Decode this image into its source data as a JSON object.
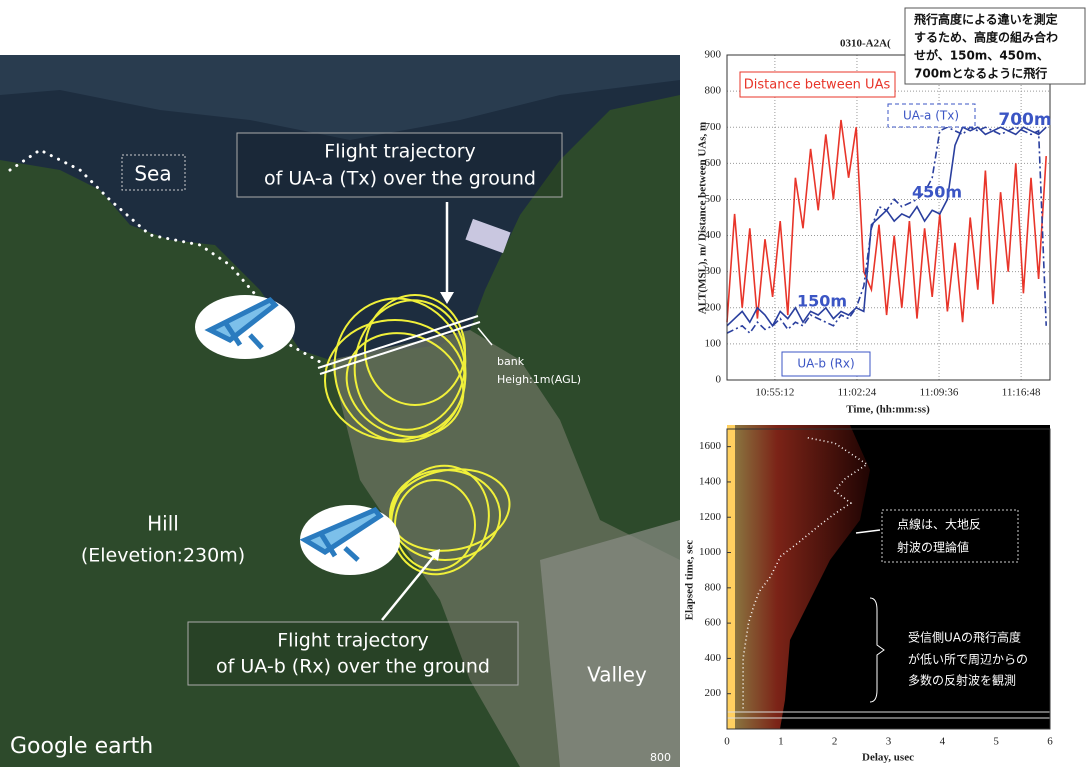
{
  "map": {
    "sea": "Sea",
    "ua_a_label": [
      "Flight trajectory",
      "of UA-a (Tx) over the ground"
    ],
    "bank": "bank",
    "bank_height": "Heigh:1m(AGL)",
    "hill": "Hill",
    "hill_elevation": "(Elevetion:230m)",
    "ua_b_label": [
      "Flight trajectory",
      "of UA-b (Rx) over the ground"
    ],
    "valley": "Valley",
    "logo": "Google earth",
    "scale": "800"
  },
  "callout": {
    "lines": [
      "飛行高度による違いを測定",
      "するため、高度の組み合わ",
      "せが、150m、450m、",
      "700mとなるように飛行"
    ]
  },
  "chart_data": [
    {
      "type": "line",
      "title": "0310-A2A(",
      "x_label": "Time, (hh:mm:ss)",
      "y_label": "ALT(MSL), m/ Distance between UAs, m",
      "x": [
        "10:51:00",
        "10:51:40",
        "10:52:20",
        "10:53:00",
        "10:53:40",
        "10:54:20",
        "10:55:00",
        "10:55:40",
        "10:56:20",
        "10:57:00",
        "10:57:40",
        "10:58:20",
        "10:59:00",
        "10:59:40",
        "11:00:20",
        "11:01:00",
        "11:01:40",
        "11:02:20",
        "11:03:00",
        "11:03:40",
        "11:04:20",
        "11:05:00",
        "11:05:40",
        "11:06:20",
        "11:07:00",
        "11:07:40",
        "11:08:20",
        "11:09:00",
        "11:09:40",
        "11:10:20",
        "11:11:00",
        "11:11:40",
        "11:12:20",
        "11:13:00",
        "11:13:40",
        "11:14:20",
        "11:15:00",
        "11:15:40",
        "11:16:20",
        "11:17:00",
        "11:17:40",
        "11:18:20",
        "11:19:00"
      ],
      "series": [
        {
          "color": "#e8352a",
          "dash": "solid",
          "values": [
            160,
            460,
            200,
            420,
            170,
            390,
            230,
            440,
            180,
            560,
            420,
            640,
            470,
            680,
            500,
            720,
            560,
            700,
            300,
            250,
            430,
            180,
            400,
            200,
            440,
            170,
            420,
            230,
            460,
            190,
            380,
            160,
            450,
            250,
            580,
            210,
            520,
            300,
            600,
            240,
            560,
            280,
            620
          ]
        },
        {
          "color": "#2a3f9e",
          "dash": "dashdot",
          "values": [
            130,
            140,
            150,
            130,
            160,
            140,
            150,
            170,
            140,
            160,
            150,
            180,
            170,
            160,
            150,
            180,
            170,
            200,
            260,
            420,
            480,
            470,
            500,
            480,
            490,
            500,
            520,
            560,
            690,
            700,
            690,
            680,
            700,
            690,
            700,
            690,
            680,
            690,
            700,
            690,
            680,
            690,
            150
          ]
        },
        {
          "color": "#2a3f9e",
          "dash": "solid",
          "values": [
            150,
            170,
            190,
            160,
            200,
            180,
            150,
            190,
            170,
            200,
            160,
            190,
            180,
            200,
            170,
            190,
            180,
            200,
            190,
            430,
            450,
            470,
            440,
            460,
            450,
            480,
            440,
            470,
            460,
            500,
            650,
            700,
            690,
            700,
            680,
            690,
            700,
            690,
            680,
            700,
            690,
            680,
            700
          ]
        }
      ],
      "xlim": [
        "10:51:00",
        "11:19:20"
      ],
      "xticks": [
        "10:55:12",
        "11:02:24",
        "11:09:36",
        "11:16:48"
      ],
      "ylim": [
        0,
        900
      ],
      "yticks": [
        0,
        100,
        200,
        300,
        400,
        500,
        600,
        700,
        800,
        900
      ],
      "grid": true,
      "annotations": [
        {
          "text": "Distance between UAs",
          "color": "#e8352a"
        },
        {
          "text": "UA-a (Tx)",
          "color": "#3b55c4"
        },
        {
          "text": "700m",
          "color": "#3b55c4"
        },
        {
          "text": "450m",
          "color": "#3b55c4"
        },
        {
          "text": "150m",
          "color": "#3b55c4"
        },
        {
          "text": "UA-b (Rx)",
          "color": "#3b55c4"
        }
      ]
    },
    {
      "type": "line",
      "x_label": "Delay, usec",
      "y_label": "Elapsed time, sec",
      "series": [
        {
          "color": "#ffffff",
          "dash": "dotted",
          "x": [
            1.5,
            2.0,
            2.3,
            2.6,
            2.2,
            2.0,
            2.3,
            2.0,
            1.7,
            1.5,
            1.3,
            1.0,
            0.9,
            0.8,
            0.6,
            0.5,
            0.4,
            0.35,
            0.3,
            0.3,
            0.3,
            0.3
          ],
          "values": [
            1650,
            1620,
            1560,
            1500,
            1420,
            1350,
            1280,
            1220,
            1150,
            1100,
            1050,
            980,
            920,
            860,
            780,
            700,
            600,
            500,
            400,
            300,
            200,
            100
          ]
        }
      ],
      "xlim": [
        0,
        6
      ],
      "xticks": [
        0,
        1,
        2,
        3,
        4,
        5,
        6
      ],
      "ylim": [
        0,
        1700
      ],
      "yticks": [
        200,
        400,
        600,
        800,
        1000,
        1200,
        1400,
        1600
      ],
      "grid": false,
      "annotations": [
        {
          "text": "点線は、大地反",
          "color": "#ffffff"
        },
        {
          "text": "射波の理論値",
          "color": "#ffffff"
        },
        {
          "text": "受信側UAの飛行高度",
          "color": "#ffffff"
        },
        {
          "text": "が低い所で周辺からの",
          "color": "#ffffff"
        },
        {
          "text": "多数の反射波を観測",
          "color": "#ffffff"
        }
      ]
    }
  ]
}
